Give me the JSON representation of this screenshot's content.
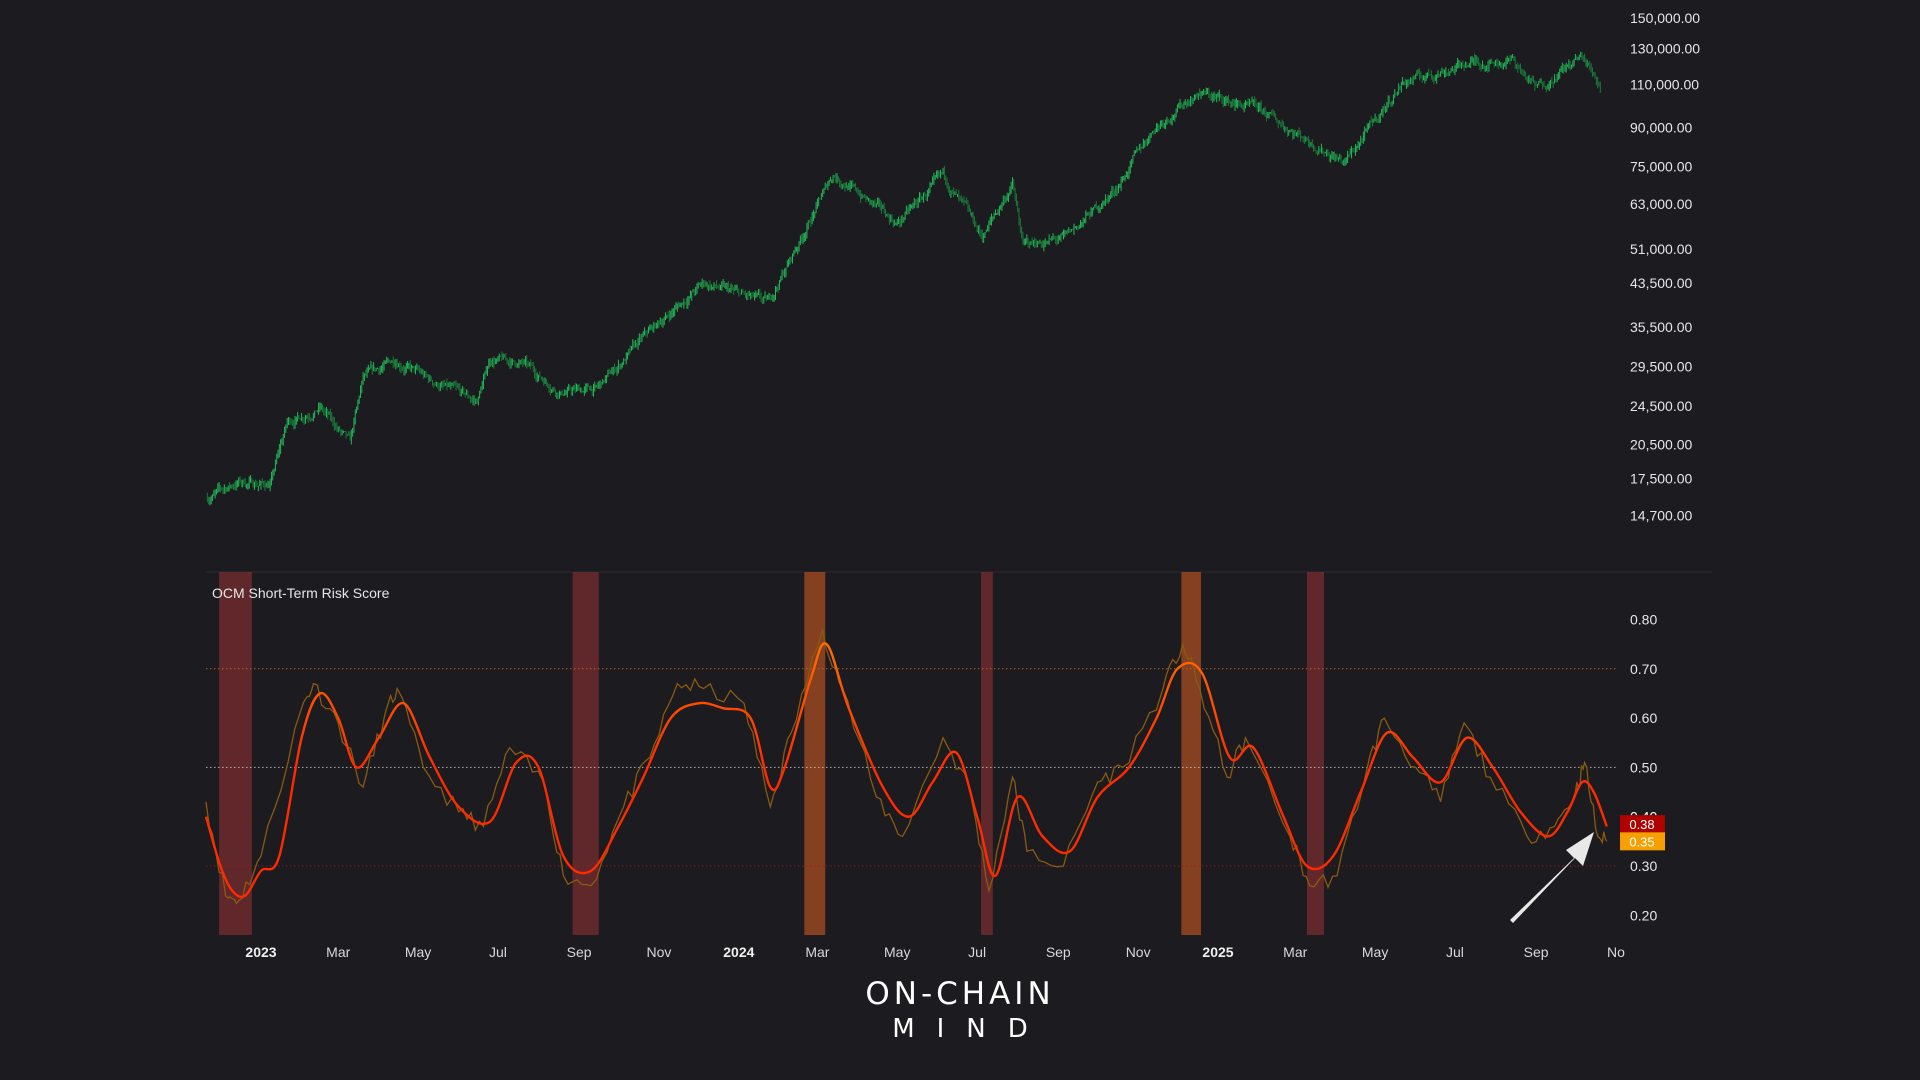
{
  "colors": {
    "background": "#1b1b20",
    "price_candles": "#23b858",
    "score_raw": "#8a5a10",
    "score_smooth": "#ff2a00",
    "score_smooth_high": "#ff7a00",
    "band_low": "#7a2e30",
    "band_high": "#a84e20",
    "ref_high": "#d26b18",
    "ref_mid": "#cfcfcf",
    "ref_low": "#a01818",
    "badge_smooth": "#b00000",
    "badge_raw": "#f5a000",
    "arrow": "#e8e8e8"
  },
  "chart_data": [
    {
      "type": "candlestick",
      "panel": "price",
      "scale": "log",
      "ylim": [
        13000,
        150000
      ],
      "x_range": [
        "2022-11-20",
        "2025-11-01"
      ],
      "y_ticks": [
        14700,
        17500,
        20500,
        24500,
        29500,
        35500,
        43500,
        51000,
        63000,
        75000,
        90000,
        110000,
        130000,
        150000
      ],
      "y_tick_labels": [
        "14,700.00",
        "17,500.00",
        "20,500.00",
        "24,500.00",
        "29,500.00",
        "35,500.00",
        "43,500.00",
        "51,000.00",
        "63,000.00",
        "75,000.00",
        "90,000.00",
        "110,000.00",
        "130,000.00",
        "150,000.00"
      ],
      "series": [
        {
          "values_approx": [
            [
              "2022-11-21",
              16000
            ],
            [
              "2022-12-15",
              17200
            ],
            [
              "2023-01-08",
              17000
            ],
            [
              "2023-01-21",
              22700
            ],
            [
              "2023-02-15",
              24400
            ],
            [
              "2023-03-10",
              20500
            ],
            [
              "2023-03-20",
              27800
            ],
            [
              "2023-04-14",
              30500
            ],
            [
              "2023-05-10",
              27600
            ],
            [
              "2023-06-15",
              25000
            ],
            [
              "2023-06-25",
              30500
            ],
            [
              "2023-07-20",
              29900
            ],
            [
              "2023-08-18",
              26200
            ],
            [
              "2023-09-15",
              26600
            ],
            [
              "2023-10-24",
              34500
            ],
            [
              "2023-12-05",
              43500
            ],
            [
              "2024-01-23",
              39500
            ],
            [
              "2024-02-15",
              52000
            ],
            [
              "2024-03-13",
              72500
            ],
            [
              "2024-05-01",
              57500
            ],
            [
              "2024-06-05",
              71500
            ],
            [
              "2024-07-05",
              54000
            ],
            [
              "2024-07-28",
              69000
            ],
            [
              "2024-08-05",
              52000
            ],
            [
              "2024-09-06",
              53500
            ],
            [
              "2024-10-15",
              67500
            ],
            [
              "2024-11-13",
              90000
            ],
            [
              "2024-12-17",
              106000
            ],
            [
              "2025-02-03",
              97000
            ],
            [
              "2025-04-08",
              76500
            ],
            [
              "2025-05-22",
              111000
            ],
            [
              "2025-07-14",
              122000
            ],
            [
              "2025-08-14",
              123000
            ],
            [
              "2025-09-01",
              108000
            ],
            [
              "2025-10-06",
              125000
            ],
            [
              "2025-10-20",
              110000
            ]
          ]
        }
      ]
    },
    {
      "type": "line",
      "panel": "risk",
      "title": "OCM Short-Term Risk Score",
      "ylim": [
        0.16,
        0.87
      ],
      "y_ticks": [
        0.2,
        0.3,
        0.4,
        0.5,
        0.6,
        0.7,
        0.8
      ],
      "y_tick_labels": [
        "0.20",
        "0.30",
        "0.40",
        "0.50",
        "0.60",
        "0.70",
        "0.80"
      ],
      "reference_lines": [
        0.7,
        0.5,
        0.3
      ],
      "x_tick_labels": [
        "2023",
        "Mar",
        "May",
        "Jul",
        "Sep",
        "Nov",
        "2024",
        "Mar",
        "May",
        "Jul",
        "Sep",
        "Nov",
        "2025",
        "Mar",
        "May",
        "Jul",
        "Sep",
        "No"
      ],
      "x_tick_dates": [
        "2023-01-01",
        "2023-03-01",
        "2023-05-01",
        "2023-07-01",
        "2023-09-01",
        "2023-11-01",
        "2024-01-01",
        "2024-03-01",
        "2024-05-01",
        "2024-07-01",
        "2024-09-01",
        "2024-11-01",
        "2025-01-01",
        "2025-03-01",
        "2025-05-01",
        "2025-07-01",
        "2025-09-01",
        "2025-11-01"
      ],
      "x_bold_labels": [
        "2023",
        "2024",
        "2025"
      ],
      "highlight_bands": [
        {
          "start": "2022-11-30",
          "end": "2022-12-25",
          "level": "low"
        },
        {
          "start": "2023-08-27",
          "end": "2023-09-16",
          "level": "low"
        },
        {
          "start": "2024-02-20",
          "end": "2024-03-07",
          "level": "high"
        },
        {
          "start": "2024-07-04",
          "end": "2024-07-13",
          "level": "low"
        },
        {
          "start": "2024-12-04",
          "end": "2024-12-19",
          "level": "high"
        },
        {
          "start": "2025-03-10",
          "end": "2025-03-23",
          "level": "low"
        }
      ],
      "series": [
        {
          "role": "smoothed",
          "values_approx": [
            [
              "2022-11-20",
              0.4
            ],
            [
              "2022-12-01",
              0.3
            ],
            [
              "2022-12-10",
              0.25
            ],
            [
              "2022-12-20",
              0.24
            ],
            [
              "2023-01-01",
              0.29
            ],
            [
              "2023-01-15",
              0.32
            ],
            [
              "2023-02-01",
              0.56
            ],
            [
              "2023-02-15",
              0.65
            ],
            [
              "2023-03-01",
              0.6
            ],
            [
              "2023-03-15",
              0.5
            ],
            [
              "2023-04-01",
              0.56
            ],
            [
              "2023-04-20",
              0.63
            ],
            [
              "2023-05-10",
              0.52
            ],
            [
              "2023-06-01",
              0.42
            ],
            [
              "2023-06-25",
              0.39
            ],
            [
              "2023-07-15",
              0.51
            ],
            [
              "2023-08-01",
              0.5
            ],
            [
              "2023-08-20",
              0.32
            ],
            [
              "2023-09-10",
              0.29
            ],
            [
              "2023-10-01",
              0.38
            ],
            [
              "2023-10-20",
              0.48
            ],
            [
              "2023-11-10",
              0.6
            ],
            [
              "2023-12-01",
              0.63
            ],
            [
              "2023-12-20",
              0.62
            ],
            [
              "2024-01-10",
              0.6
            ],
            [
              "2024-01-25",
              0.46
            ],
            [
              "2024-02-05",
              0.5
            ],
            [
              "2024-02-25",
              0.68
            ],
            [
              "2024-03-08",
              0.75
            ],
            [
              "2024-03-25",
              0.62
            ],
            [
              "2024-04-20",
              0.46
            ],
            [
              "2024-05-10",
              0.4
            ],
            [
              "2024-05-28",
              0.47
            ],
            [
              "2024-06-15",
              0.53
            ],
            [
              "2024-07-01",
              0.4
            ],
            [
              "2024-07-15",
              0.28
            ],
            [
              "2024-08-01",
              0.44
            ],
            [
              "2024-08-20",
              0.36
            ],
            [
              "2024-09-10",
              0.33
            ],
            [
              "2024-10-01",
              0.44
            ],
            [
              "2024-10-25",
              0.5
            ],
            [
              "2024-11-15",
              0.6
            ],
            [
              "2024-12-01",
              0.7
            ],
            [
              "2024-12-20",
              0.69
            ],
            [
              "2025-01-10",
              0.52
            ],
            [
              "2025-01-28",
              0.54
            ],
            [
              "2025-02-20",
              0.4
            ],
            [
              "2025-03-10",
              0.3
            ],
            [
              "2025-03-30",
              0.32
            ],
            [
              "2025-04-20",
              0.45
            ],
            [
              "2025-05-10",
              0.57
            ],
            [
              "2025-05-30",
              0.52
            ],
            [
              "2025-06-20",
              0.47
            ],
            [
              "2025-07-10",
              0.56
            ],
            [
              "2025-07-30",
              0.5
            ],
            [
              "2025-08-20",
              0.41
            ],
            [
              "2025-09-10",
              0.36
            ],
            [
              "2025-09-25",
              0.41
            ],
            [
              "2025-10-06",
              0.47
            ],
            [
              "2025-10-15",
              0.45
            ],
            [
              "2025-10-25",
              0.38
            ]
          ]
        },
        {
          "role": "raw",
          "values_approx": [
            [
              "2022-11-20",
              0.43
            ],
            [
              "2022-12-05",
              0.24
            ],
            [
              "2022-12-15",
              0.23
            ],
            [
              "2023-01-01",
              0.32
            ],
            [
              "2023-02-01",
              0.62
            ],
            [
              "2023-02-10",
              0.67
            ],
            [
              "2023-03-01",
              0.59
            ],
            [
              "2023-03-20",
              0.46
            ],
            [
              "2023-04-05",
              0.6
            ],
            [
              "2023-04-15",
              0.66
            ],
            [
              "2023-05-05",
              0.5
            ],
            [
              "2023-06-01",
              0.41
            ],
            [
              "2023-06-20",
              0.38
            ],
            [
              "2023-07-10",
              0.54
            ],
            [
              "2023-08-05",
              0.47
            ],
            [
              "2023-08-20",
              0.28
            ],
            [
              "2023-09-10",
              0.26
            ],
            [
              "2023-10-05",
              0.42
            ],
            [
              "2023-10-25",
              0.52
            ],
            [
              "2023-11-15",
              0.67
            ],
            [
              "2023-12-05",
              0.66
            ],
            [
              "2024-01-05",
              0.63
            ],
            [
              "2024-01-25",
              0.42
            ],
            [
              "2024-02-10",
              0.57
            ],
            [
              "2024-03-05",
              0.78
            ],
            [
              "2024-03-20",
              0.66
            ],
            [
              "2024-04-15",
              0.44
            ],
            [
              "2024-05-05",
              0.36
            ],
            [
              "2024-06-05",
              0.56
            ],
            [
              "2024-06-25",
              0.46
            ],
            [
              "2024-07-10",
              0.25
            ],
            [
              "2024-07-28",
              0.48
            ],
            [
              "2024-08-08",
              0.33
            ],
            [
              "2024-09-05",
              0.3
            ],
            [
              "2024-10-01",
              0.47
            ],
            [
              "2024-10-20",
              0.5
            ],
            [
              "2024-11-20",
              0.66
            ],
            [
              "2024-12-05",
              0.75
            ],
            [
              "2024-12-18",
              0.66
            ],
            [
              "2025-01-08",
              0.48
            ],
            [
              "2025-01-22",
              0.56
            ],
            [
              "2025-02-25",
              0.36
            ],
            [
              "2025-03-12",
              0.26
            ],
            [
              "2025-04-02",
              0.28
            ],
            [
              "2025-04-25",
              0.5
            ],
            [
              "2025-05-08",
              0.6
            ],
            [
              "2025-06-01",
              0.5
            ],
            [
              "2025-06-20",
              0.43
            ],
            [
              "2025-07-08",
              0.59
            ],
            [
              "2025-07-28",
              0.48
            ],
            [
              "2025-08-25",
              0.36
            ],
            [
              "2025-09-15",
              0.38
            ],
            [
              "2025-10-01",
              0.45
            ],
            [
              "2025-10-08",
              0.51
            ],
            [
              "2025-10-18",
              0.36
            ],
            [
              "2025-10-25",
              0.35
            ]
          ]
        }
      ],
      "current_values": {
        "smoothed": "0.38",
        "raw": "0.35"
      },
      "hidden_tick_label": "0.40"
    }
  ],
  "logo": {
    "line1": "ON-CHAIN",
    "line2": "MIND"
  }
}
